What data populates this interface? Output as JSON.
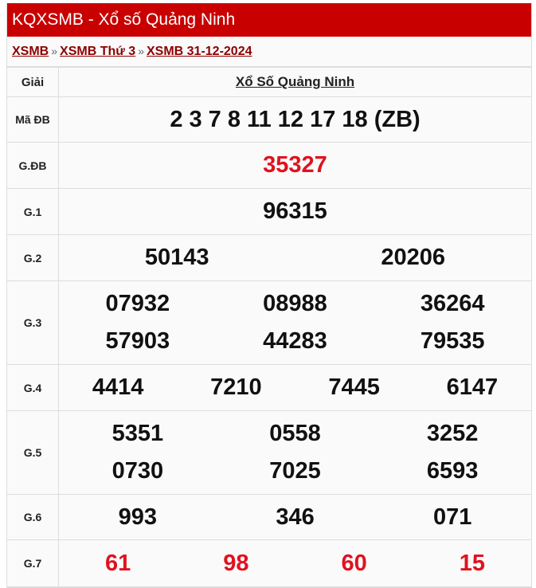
{
  "header": {
    "title": "KQXSMB - Xổ số Quảng Ninh"
  },
  "breadcrumb": [
    {
      "label": "XSMB"
    },
    {
      "label": "XSMB Thứ 3"
    },
    {
      "label": "XSMB 31-12-2024"
    }
  ],
  "separator": "»",
  "table": {
    "col_label": "Giải",
    "col_title": "Xổ Số Quảng Ninh",
    "madb": {
      "label": "Mã ĐB",
      "value": "2 3 7 8 11 12 17 18 (ZB)"
    },
    "rows": [
      {
        "label": "G.ĐB",
        "lines": [
          [
            "35327"
          ]
        ]
      },
      {
        "label": "G.1",
        "lines": [
          [
            "96315"
          ]
        ]
      },
      {
        "label": "G.2",
        "lines": [
          [
            "50143",
            "20206"
          ]
        ]
      },
      {
        "label": "G.3",
        "lines": [
          [
            "07932",
            "08988",
            "36264"
          ],
          [
            "57903",
            "44283",
            "79535"
          ]
        ]
      },
      {
        "label": "G.4",
        "lines": [
          [
            "4414",
            "7210",
            "7445",
            "6147"
          ]
        ]
      },
      {
        "label": "G.5",
        "lines": [
          [
            "5351",
            "0558",
            "3252"
          ],
          [
            "0730",
            "7025",
            "6593"
          ]
        ]
      },
      {
        "label": "G.6",
        "lines": [
          [
            "993",
            "346",
            "071"
          ]
        ]
      },
      {
        "label": "G.7",
        "lines": [
          [
            "61",
            "98",
            "60",
            "15"
          ]
        ]
      }
    ]
  },
  "colors": {
    "header": "#c80000",
    "highlight": "#e0121f",
    "link": "#8b0000"
  }
}
